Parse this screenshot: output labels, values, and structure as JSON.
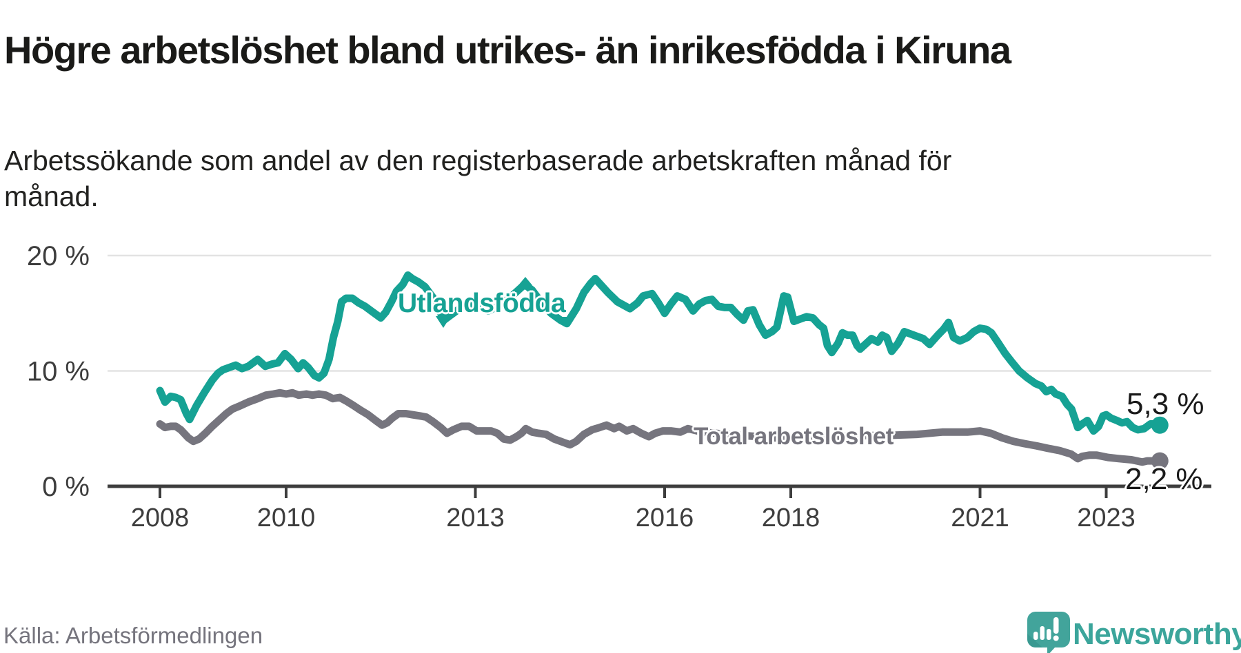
{
  "header": {
    "title": "Högre arbetslöshet bland utrikes- än inrikesfödda i Kiruna",
    "subtitle": "Arbetssökande som andel av den registerbaserade arbetskraften månad för månad."
  },
  "chart_data": {
    "type": "line",
    "title": "Högre arbetslöshet bland utrikes- än inrikesfödda i Kiruna",
    "xlabel": "",
    "ylabel": "Arbetssökande som andel av den registerbaserade arbetskraften",
    "ylim": [
      0,
      21.5
    ],
    "grid": "horizontal",
    "legend_position": "labels-on-lines",
    "y_ticks": [
      {
        "value": 0,
        "label": "0 %"
      },
      {
        "value": 10,
        "label": "10 %"
      },
      {
        "value": 20,
        "label": "20 %"
      }
    ],
    "x_ticks": [
      {
        "year": 2008,
        "label": "2008"
      },
      {
        "year": 2010,
        "label": "2010"
      },
      {
        "year": 2013,
        "label": "2013"
      },
      {
        "year": 2016,
        "label": "2016"
      },
      {
        "year": 2018,
        "label": "2018"
      },
      {
        "year": 2021,
        "label": "2021"
      },
      {
        "year": 2023,
        "label": "2023"
      }
    ],
    "series": [
      {
        "name": "Utlandsfödda",
        "color": "#16a294",
        "end_label": "5,3 %",
        "end_value": 5.3,
        "points": [
          [
            2008.0,
            8.3
          ],
          [
            2008.08,
            7.3
          ],
          [
            2008.17,
            7.8
          ],
          [
            2008.25,
            7.7
          ],
          [
            2008.33,
            7.5
          ],
          [
            2008.42,
            6.3
          ],
          [
            2008.47,
            5.8
          ],
          [
            2008.58,
            7.0
          ],
          [
            2008.7,
            8.1
          ],
          [
            2008.83,
            9.2
          ],
          [
            2008.92,
            9.8
          ],
          [
            2009.0,
            10.1
          ],
          [
            2009.1,
            10.3
          ],
          [
            2009.2,
            10.5
          ],
          [
            2009.3,
            10.2
          ],
          [
            2009.4,
            10.4
          ],
          [
            2009.55,
            11.0
          ],
          [
            2009.67,
            10.4
          ],
          [
            2009.78,
            10.6
          ],
          [
            2009.87,
            10.7
          ],
          [
            2009.98,
            11.5
          ],
          [
            2010.08,
            11.0
          ],
          [
            2010.19,
            10.2
          ],
          [
            2010.27,
            10.7
          ],
          [
            2010.35,
            10.3
          ],
          [
            2010.45,
            9.6
          ],
          [
            2010.52,
            9.4
          ],
          [
            2010.6,
            9.8
          ],
          [
            2010.68,
            11.0
          ],
          [
            2010.75,
            12.9
          ],
          [
            2010.82,
            14.3
          ],
          [
            2010.88,
            16.0
          ],
          [
            2010.95,
            16.3
          ],
          [
            2011.05,
            16.3
          ],
          [
            2011.15,
            15.9
          ],
          [
            2011.25,
            15.6
          ],
          [
            2011.35,
            15.2
          ],
          [
            2011.5,
            14.6
          ],
          [
            2011.58,
            15.1
          ],
          [
            2011.67,
            16.0
          ],
          [
            2011.75,
            16.9
          ],
          [
            2011.85,
            17.5
          ],
          [
            2011.93,
            18.3
          ],
          [
            2012.0,
            18.0
          ],
          [
            2012.1,
            17.7
          ],
          [
            2012.2,
            17.3
          ],
          [
            2012.35,
            16.2
          ],
          [
            2012.5,
            14.4
          ],
          [
            2012.6,
            14.8
          ],
          [
            2012.75,
            15.4
          ],
          [
            2012.9,
            15.7
          ],
          [
            2013.05,
            15.6
          ],
          [
            2013.2,
            15.2
          ],
          [
            2013.4,
            15.7
          ],
          [
            2013.6,
            16.6
          ],
          [
            2013.78,
            17.5
          ],
          [
            2013.9,
            17.0
          ],
          [
            2014.05,
            15.9
          ],
          [
            2014.2,
            15.0
          ],
          [
            2014.35,
            14.4
          ],
          [
            2014.45,
            14.1
          ],
          [
            2014.6,
            15.4
          ],
          [
            2014.72,
            16.8
          ],
          [
            2014.83,
            17.6
          ],
          [
            2014.9,
            18.0
          ],
          [
            2015.0,
            17.4
          ],
          [
            2015.1,
            16.8
          ],
          [
            2015.25,
            16.0
          ],
          [
            2015.45,
            15.4
          ],
          [
            2015.57,
            15.9
          ],
          [
            2015.66,
            16.5
          ],
          [
            2015.8,
            16.7
          ],
          [
            2015.9,
            15.9
          ],
          [
            2016.0,
            15.0
          ],
          [
            2016.1,
            15.8
          ],
          [
            2016.2,
            16.5
          ],
          [
            2016.33,
            16.2
          ],
          [
            2016.45,
            15.2
          ],
          [
            2016.55,
            15.8
          ],
          [
            2016.65,
            16.1
          ],
          [
            2016.75,
            16.2
          ],
          [
            2016.85,
            15.6
          ],
          [
            2016.95,
            15.5
          ],
          [
            2017.05,
            15.5
          ],
          [
            2017.15,
            14.9
          ],
          [
            2017.25,
            14.4
          ],
          [
            2017.32,
            15.2
          ],
          [
            2017.4,
            15.3
          ],
          [
            2017.5,
            14.0
          ],
          [
            2017.6,
            13.1
          ],
          [
            2017.7,
            13.4
          ],
          [
            2017.78,
            13.8
          ],
          [
            2017.89,
            16.5
          ],
          [
            2017.95,
            16.4
          ],
          [
            2018.05,
            14.3
          ],
          [
            2018.15,
            14.5
          ],
          [
            2018.25,
            14.7
          ],
          [
            2018.35,
            14.6
          ],
          [
            2018.45,
            14.0
          ],
          [
            2018.52,
            13.7
          ],
          [
            2018.58,
            12.2
          ],
          [
            2018.65,
            11.6
          ],
          [
            2018.75,
            12.4
          ],
          [
            2018.82,
            13.3
          ],
          [
            2018.9,
            13.1
          ],
          [
            2018.98,
            13.1
          ],
          [
            2019.05,
            12.2
          ],
          [
            2019.1,
            11.9
          ],
          [
            2019.2,
            12.4
          ],
          [
            2019.28,
            12.8
          ],
          [
            2019.38,
            12.5
          ],
          [
            2019.45,
            13.1
          ],
          [
            2019.52,
            12.9
          ],
          [
            2019.6,
            11.7
          ],
          [
            2019.7,
            12.4
          ],
          [
            2019.8,
            13.4
          ],
          [
            2019.9,
            13.2
          ],
          [
            2020.0,
            13.0
          ],
          [
            2020.1,
            12.8
          ],
          [
            2020.2,
            12.3
          ],
          [
            2020.33,
            13.1
          ],
          [
            2020.42,
            13.6
          ],
          [
            2020.5,
            14.2
          ],
          [
            2020.58,
            12.9
          ],
          [
            2020.68,
            12.6
          ],
          [
            2020.8,
            12.9
          ],
          [
            2020.9,
            13.4
          ],
          [
            2021.0,
            13.7
          ],
          [
            2021.1,
            13.6
          ],
          [
            2021.18,
            13.3
          ],
          [
            2021.28,
            12.5
          ],
          [
            2021.4,
            11.5
          ],
          [
            2021.5,
            10.8
          ],
          [
            2021.62,
            10.0
          ],
          [
            2021.75,
            9.4
          ],
          [
            2021.88,
            8.9
          ],
          [
            2021.97,
            8.7
          ],
          [
            2022.05,
            8.2
          ],
          [
            2022.13,
            8.4
          ],
          [
            2022.2,
            8.0
          ],
          [
            2022.3,
            7.8
          ],
          [
            2022.38,
            7.1
          ],
          [
            2022.45,
            6.7
          ],
          [
            2022.55,
            5.1
          ],
          [
            2022.62,
            5.4
          ],
          [
            2022.7,
            5.7
          ],
          [
            2022.8,
            4.8
          ],
          [
            2022.88,
            5.2
          ],
          [
            2022.95,
            6.1
          ],
          [
            2023.0,
            6.2
          ],
          [
            2023.08,
            5.9
          ],
          [
            2023.17,
            5.7
          ],
          [
            2023.25,
            5.5
          ],
          [
            2023.33,
            5.6
          ],
          [
            2023.42,
            5.1
          ],
          [
            2023.5,
            4.9
          ],
          [
            2023.6,
            5.0
          ],
          [
            2023.7,
            5.4
          ],
          [
            2023.78,
            5.4
          ],
          [
            2023.85,
            5.3
          ]
        ]
      },
      {
        "name": "Total arbetslöshet",
        "color": "#76757e",
        "end_label": "2,2 %",
        "end_value": 2.2,
        "points": [
          [
            2008.0,
            5.4
          ],
          [
            2008.08,
            5.1
          ],
          [
            2008.17,
            5.2
          ],
          [
            2008.25,
            5.2
          ],
          [
            2008.33,
            4.9
          ],
          [
            2008.45,
            4.2
          ],
          [
            2008.53,
            3.9
          ],
          [
            2008.62,
            4.1
          ],
          [
            2008.72,
            4.6
          ],
          [
            2008.83,
            5.2
          ],
          [
            2008.95,
            5.8
          ],
          [
            2009.05,
            6.3
          ],
          [
            2009.15,
            6.7
          ],
          [
            2009.28,
            7.0
          ],
          [
            2009.4,
            7.3
          ],
          [
            2009.55,
            7.6
          ],
          [
            2009.68,
            7.9
          ],
          [
            2009.8,
            8.0
          ],
          [
            2009.9,
            8.1
          ],
          [
            2010.0,
            8.0
          ],
          [
            2010.1,
            8.1
          ],
          [
            2010.2,
            7.9
          ],
          [
            2010.32,
            8.0
          ],
          [
            2010.42,
            7.9
          ],
          [
            2010.52,
            8.0
          ],
          [
            2010.63,
            7.9
          ],
          [
            2010.74,
            7.6
          ],
          [
            2010.85,
            7.7
          ],
          [
            2010.95,
            7.4
          ],
          [
            2011.07,
            7.0
          ],
          [
            2011.18,
            6.6
          ],
          [
            2011.3,
            6.2
          ],
          [
            2011.42,
            5.7
          ],
          [
            2011.52,
            5.3
          ],
          [
            2011.6,
            5.5
          ],
          [
            2011.68,
            5.9
          ],
          [
            2011.78,
            6.3
          ],
          [
            2011.9,
            6.3
          ],
          [
            2012.0,
            6.2
          ],
          [
            2012.12,
            6.1
          ],
          [
            2012.22,
            6.0
          ],
          [
            2012.33,
            5.6
          ],
          [
            2012.45,
            5.1
          ],
          [
            2012.55,
            4.6
          ],
          [
            2012.65,
            4.9
          ],
          [
            2012.78,
            5.2
          ],
          [
            2012.9,
            5.2
          ],
          [
            2013.02,
            4.8
          ],
          [
            2013.15,
            4.8
          ],
          [
            2013.25,
            4.8
          ],
          [
            2013.35,
            4.6
          ],
          [
            2013.45,
            4.1
          ],
          [
            2013.55,
            4.0
          ],
          [
            2013.65,
            4.3
          ],
          [
            2013.73,
            4.6
          ],
          [
            2013.8,
            5.0
          ],
          [
            2013.9,
            4.7
          ],
          [
            2014.0,
            4.6
          ],
          [
            2014.12,
            4.5
          ],
          [
            2014.25,
            4.1
          ],
          [
            2014.4,
            3.8
          ],
          [
            2014.5,
            3.6
          ],
          [
            2014.6,
            3.9
          ],
          [
            2014.72,
            4.5
          ],
          [
            2014.85,
            4.9
          ],
          [
            2014.97,
            5.1
          ],
          [
            2015.08,
            5.3
          ],
          [
            2015.2,
            5.0
          ],
          [
            2015.28,
            5.2
          ],
          [
            2015.4,
            4.8
          ],
          [
            2015.5,
            5.0
          ],
          [
            2015.63,
            4.6
          ],
          [
            2015.75,
            4.3
          ],
          [
            2015.85,
            4.6
          ],
          [
            2015.97,
            4.8
          ],
          [
            2016.1,
            4.8
          ],
          [
            2016.25,
            4.7
          ],
          [
            2016.37,
            5.0
          ],
          [
            2016.6,
            4.7
          ],
          [
            2017.0,
            4.5
          ],
          [
            2017.5,
            4.3
          ],
          [
            2018.0,
            4.1
          ],
          [
            2018.5,
            4.2
          ],
          [
            2019.0,
            4.4
          ],
          [
            2019.5,
            4.4
          ],
          [
            2020.0,
            4.5
          ],
          [
            2020.4,
            4.7
          ],
          [
            2020.8,
            4.7
          ],
          [
            2021.0,
            4.8
          ],
          [
            2021.17,
            4.6
          ],
          [
            2021.35,
            4.2
          ],
          [
            2021.53,
            3.9
          ],
          [
            2021.7,
            3.7
          ],
          [
            2021.9,
            3.5
          ],
          [
            2022.07,
            3.3
          ],
          [
            2022.26,
            3.1
          ],
          [
            2022.44,
            2.8
          ],
          [
            2022.55,
            2.4
          ],
          [
            2022.62,
            2.6
          ],
          [
            2022.73,
            2.7
          ],
          [
            2022.85,
            2.7
          ],
          [
            2023.03,
            2.5
          ],
          [
            2023.2,
            2.4
          ],
          [
            2023.4,
            2.3
          ],
          [
            2023.57,
            2.1
          ],
          [
            2023.65,
            2.2
          ],
          [
            2023.85,
            2.2
          ]
        ]
      }
    ]
  },
  "colors": {
    "accent_teal": "#16a294",
    "line_gray": "#76757e",
    "axis": "#3d3d3d",
    "grid": "#e3e3e3",
    "text_dark": "#1a1a1a",
    "logo_teal": "#42a49b",
    "logo_dark_teal": "#2f8b84"
  },
  "footer": {
    "source": "Källa: Arbetsförmedlingen",
    "brand": "Newsworthy"
  }
}
